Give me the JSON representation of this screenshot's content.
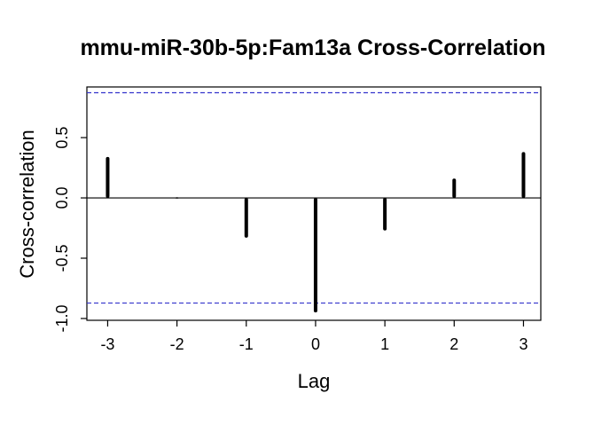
{
  "chart_data": {
    "type": "bar",
    "title": "mmu-miR-30b-5p:Fam13a Cross-Correlation",
    "xlabel": "Lag",
    "ylabel": "Cross-correlation",
    "x": [
      -3,
      -2,
      -1,
      0,
      1,
      2,
      3
    ],
    "values": [
      0.34,
      0.0,
      -0.33,
      -0.95,
      -0.27,
      0.16,
      0.38
    ],
    "x_ticks": [
      -3,
      -2,
      -1,
      0,
      1,
      2,
      3
    ],
    "x_tick_labels": [
      "-3",
      "-2",
      "-1",
      "0",
      "1",
      "2",
      "3"
    ],
    "y_ticks": [
      -1.0,
      -0.5,
      0.0,
      0.5
    ],
    "y_tick_labels": [
      "-1.0",
      "-0.5",
      "0.0",
      "0.5"
    ],
    "xlim": [
      -3.3,
      3.25
    ],
    "ylim": [
      -1.015,
      0.92
    ],
    "confidence_limits": [
      0.872,
      -0.872
    ],
    "colors": {
      "bars": "#000000",
      "confidence": "#3333cc",
      "zero_line": "#000000",
      "frame": "#000000"
    },
    "grid": false,
    "legend": "none"
  }
}
